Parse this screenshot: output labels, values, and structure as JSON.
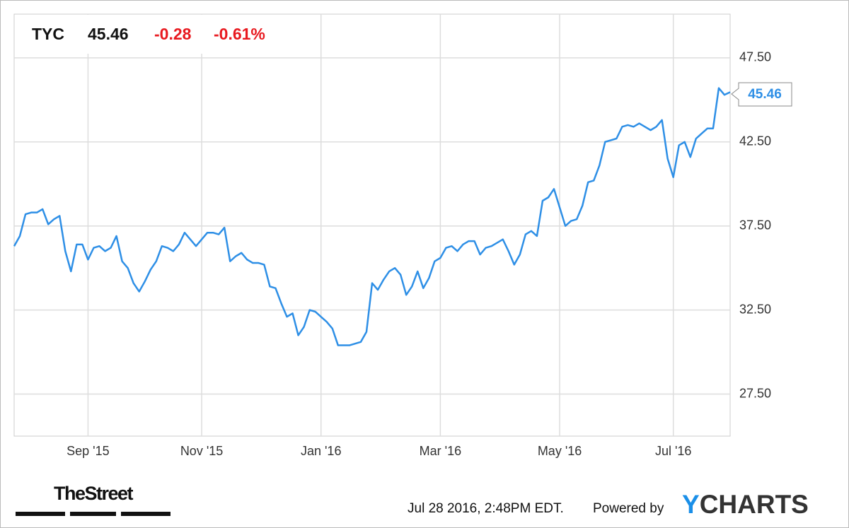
{
  "header": {
    "symbol": "TYC",
    "price": 45.46,
    "change": -0.28,
    "change_percent": "-0.61%"
  },
  "chart_data": {
    "type": "line",
    "categories": [
      null,
      null,
      null,
      null,
      null,
      null,
      null,
      null,
      null,
      null,
      null,
      null,
      null,
      "Sep '15",
      null,
      null,
      null,
      null,
      null,
      null,
      null,
      null,
      null,
      null,
      null,
      null,
      null,
      null,
      null,
      null,
      null,
      null,
      null,
      "Nov '15",
      null,
      null,
      null,
      null,
      null,
      null,
      null,
      null,
      null,
      null,
      null,
      null,
      null,
      null,
      null,
      null,
      null,
      null,
      null,
      null,
      "Jan '16",
      null,
      null,
      null,
      null,
      null,
      null,
      null,
      null,
      null,
      null,
      null,
      null,
      null,
      null,
      null,
      null,
      null,
      null,
      null,
      null,
      "Mar '16",
      null,
      null,
      null,
      null,
      null,
      null,
      null,
      null,
      null,
      null,
      null,
      null,
      null,
      null,
      null,
      null,
      null,
      null,
      null,
      null,
      "May '16",
      null,
      null,
      null,
      null,
      null,
      null,
      null,
      null,
      null,
      null,
      null,
      null,
      null,
      null,
      null,
      null,
      null,
      null,
      null,
      "Jul '16",
      null,
      null,
      null,
      null,
      null,
      null,
      null,
      null,
      null,
      null
    ],
    "series": [
      {
        "name": "TYC",
        "color": "#2e8fe6",
        "values": [
          36.3,
          36.9,
          38.2,
          38.3,
          38.3,
          38.5,
          37.6,
          37.9,
          38.1,
          36.0,
          34.8,
          36.4,
          36.4,
          35.5,
          36.2,
          36.3,
          36.0,
          36.2,
          36.9,
          35.4,
          35.0,
          34.1,
          33.6,
          34.2,
          34.9,
          35.4,
          36.3,
          36.2,
          36.0,
          36.4,
          37.1,
          36.7,
          36.3,
          36.7,
          37.1,
          37.1,
          37.0,
          37.4,
          35.4,
          35.7,
          35.9,
          35.5,
          35.3,
          35.3,
          35.2,
          33.9,
          33.8,
          32.9,
          32.1,
          32.3,
          31.0,
          31.5,
          32.5,
          32.4,
          32.1,
          31.8,
          31.4,
          30.4,
          30.4,
          30.4,
          30.5,
          30.6,
          31.2,
          34.1,
          33.7,
          34.3,
          34.8,
          35.0,
          34.6,
          33.4,
          33.9,
          34.8,
          33.8,
          34.4,
          35.4,
          35.6,
          36.2,
          36.3,
          36.0,
          36.4,
          36.6,
          36.6,
          35.8,
          36.2,
          36.3,
          36.5,
          36.7,
          36.0,
          35.2,
          35.8,
          37.0,
          37.2,
          36.9,
          39.0,
          39.2,
          39.7,
          38.6,
          37.5,
          37.8,
          37.9,
          38.7,
          40.1,
          40.2,
          41.1,
          42.5,
          42.6,
          42.7,
          43.4,
          43.5,
          43.4,
          43.6,
          43.4,
          43.2,
          43.4,
          43.8,
          41.5,
          40.4,
          42.3,
          42.5,
          41.6,
          42.7,
          43.0,
          43.3,
          43.3,
          45.7,
          45.3,
          45.46
        ]
      }
    ],
    "ylim": [
      25,
      50.1
    ],
    "yticks": [
      {
        "value": 27.5,
        "label": "27.50"
      },
      {
        "value": 32.5,
        "label": "32.50"
      },
      {
        "value": 37.5,
        "label": "37.50"
      },
      {
        "value": 42.5,
        "label": "42.50"
      },
      {
        "value": 47.5,
        "label": "47.50"
      }
    ],
    "grid": true
  },
  "footer": {
    "timestamp": "Jul 28 2016, 2:48PM EDT.",
    "powered_by": "Powered by",
    "brand": "YCHARTS",
    "publisher": "TheStreet"
  }
}
